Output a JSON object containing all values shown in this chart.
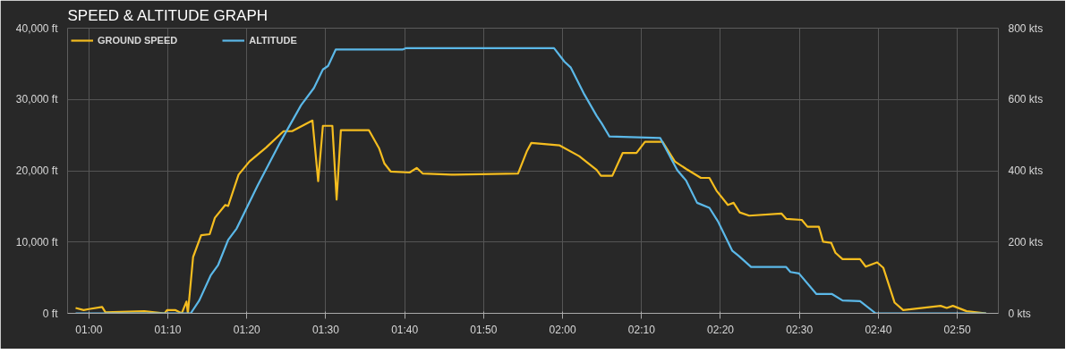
{
  "chart_data": {
    "type": "line",
    "title": "SPEED & ALTITUDE GRAPH",
    "xlim": [
      0.955,
      2.92
    ],
    "xticks": [
      {
        "value": 1.0,
        "label": "01:00"
      },
      {
        "value": 1.1667,
        "label": "01:10"
      },
      {
        "value": 1.3333,
        "label": "01:20"
      },
      {
        "value": 1.5,
        "label": "01:30"
      },
      {
        "value": 1.6667,
        "label": "01:40"
      },
      {
        "value": 1.8333,
        "label": "01:50"
      },
      {
        "value": 2.0,
        "label": "02:00"
      },
      {
        "value": 2.1667,
        "label": "02:10"
      },
      {
        "value": 2.3333,
        "label": "02:20"
      },
      {
        "value": 2.5,
        "label": "02:30"
      },
      {
        "value": 2.6667,
        "label": "02:40"
      },
      {
        "value": 2.8333,
        "label": "02:50"
      }
    ],
    "ylim": [
      0,
      40000
    ],
    "yticks": [
      {
        "value": 0,
        "label": "0 ft"
      },
      {
        "value": 10000,
        "label": "10,000 ft"
      },
      {
        "value": 20000,
        "label": "20,000 ft"
      },
      {
        "value": 30000,
        "label": "30,000 ft"
      },
      {
        "value": 40000,
        "label": "40,000 ft"
      }
    ],
    "y2lim": [
      0,
      800
    ],
    "y2ticks": [
      {
        "value": 0,
        "label": "0 kts"
      },
      {
        "value": 200,
        "label": "200 kts"
      },
      {
        "value": 400,
        "label": "400 kts"
      },
      {
        "value": 600,
        "label": "600 kts"
      },
      {
        "value": 800,
        "label": "800 kts"
      }
    ],
    "grid": true,
    "legend": "top left",
    "marker": "none",
    "line_style": "solid",
    "series": [
      {
        "name": "GROUND SPEED",
        "color": "#f5bd1f",
        "axis": "y2",
        "x": [
          0.972,
          0.989,
          1.0,
          1.028,
          1.035,
          1.117,
          1.16,
          1.165,
          1.183,
          1.196,
          1.206,
          1.209,
          1.22,
          1.237,
          1.255,
          1.266,
          1.288,
          1.294,
          1.316,
          1.339,
          1.374,
          1.411,
          1.429,
          1.472,
          1.484,
          1.494,
          1.514,
          1.523,
          1.532,
          1.591,
          1.613,
          1.624,
          1.637,
          1.677,
          1.692,
          1.705,
          1.765,
          1.906,
          1.925,
          1.934,
          1.994,
          2.035,
          2.072,
          2.081,
          2.105,
          2.127,
          2.156,
          2.174,
          2.211,
          2.237,
          2.261,
          2.292,
          2.31,
          2.325,
          2.349,
          2.361,
          2.374,
          2.394,
          2.462,
          2.472,
          2.505,
          2.517,
          2.541,
          2.55,
          2.567,
          2.576,
          2.591,
          2.628,
          2.64,
          2.664,
          2.677,
          2.701,
          2.719,
          2.798,
          2.811,
          2.824,
          2.853,
          2.894
        ],
        "values": [
          15,
          9,
          12,
          18,
          3,
          6,
          0,
          9,
          9,
          0,
          33,
          0,
          158,
          219,
          222,
          268,
          304,
          301,
          389,
          426,
          465,
          511,
          511,
          541,
          371,
          526,
          526,
          319,
          514,
          514,
          462,
          420,
          398,
          395,
          408,
          392,
          389,
          392,
          456,
          478,
          471,
          441,
          402,
          386,
          386,
          450,
          450,
          481,
          481,
          426,
          405,
          380,
          380,
          344,
          304,
          310,
          283,
          274,
          280,
          265,
          262,
          243,
          243,
          201,
          198,
          170,
          152,
          152,
          131,
          143,
          128,
          30,
          9,
          21,
          15,
          21,
          6,
          0
        ]
      },
      {
        "name": "ALTITUDE",
        "color": "#5bb8e8",
        "x": [
          0.972,
          1.215,
          1.233,
          1.257,
          1.273,
          1.294,
          1.312,
          1.356,
          1.404,
          1.448,
          1.475,
          1.494,
          1.505,
          1.521,
          1.662,
          1.67,
          1.982,
          2.004,
          2.017,
          2.046,
          2.072,
          2.083,
          2.099,
          2.206,
          2.242,
          2.261,
          2.284,
          2.31,
          2.328,
          2.358,
          2.371,
          2.398,
          2.472,
          2.481,
          2.499,
          2.536,
          2.569,
          2.591,
          2.628,
          2.661,
          2.894
        ],
        "values": [
          0,
          0,
          1800,
          5300,
          6800,
          10300,
          11900,
          17900,
          24000,
          29200,
          31600,
          34200,
          34700,
          37000,
          37000,
          37200,
          37200,
          35300,
          34500,
          30700,
          27700,
          26600,
          24800,
          24600,
          20100,
          18600,
          15500,
          14800,
          12900,
          8800,
          8100,
          6500,
          6500,
          5800,
          5600,
          2700,
          2700,
          1800,
          1700,
          0,
          0
        ]
      }
    ]
  }
}
